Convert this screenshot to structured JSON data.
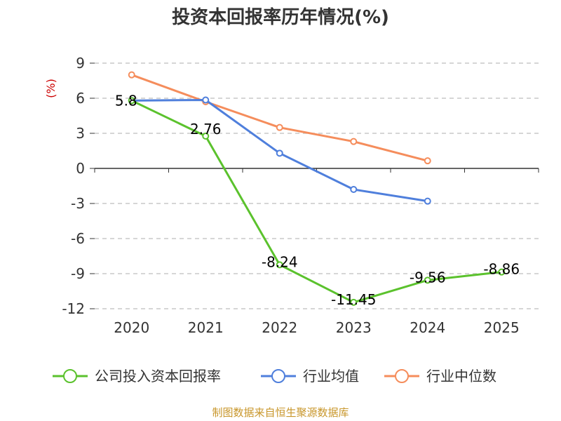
{
  "chart_data": {
    "type": "line",
    "title": "投资本回报率历年情况(%)",
    "ylabel": "(%)",
    "categories": [
      "2020",
      "2021",
      "2022",
      "2023",
      "2024",
      "2025"
    ],
    "ylim": [
      -12,
      9
    ],
    "yticks": [
      9,
      6,
      3,
      0,
      -3,
      -6,
      -9,
      -12
    ],
    "ytick_labels": [
      "9",
      "6",
      "3",
      "0",
      "-3",
      "-6",
      "-9",
      "-12"
    ],
    "grid": true,
    "legend_position": "bottom",
    "series": [
      {
        "name": "公司投入资本回报率",
        "color": "#5bc22d",
        "values": [
          5.8,
          2.76,
          -8.24,
          -11.45,
          -9.56,
          -8.86
        ],
        "labels": [
          "5.8",
          "2.76",
          "-8.24",
          "-11.45",
          "-9.56",
          "-8.86"
        ]
      },
      {
        "name": "行业均值",
        "color": "#4f7fdc",
        "values": [
          5.8,
          5.85,
          1.3,
          -1.8,
          -2.8,
          null
        ]
      },
      {
        "name": "行业中位数",
        "color": "#f58d5c",
        "values": [
          8.0,
          5.7,
          3.5,
          2.3,
          0.65,
          null
        ]
      }
    ]
  },
  "source_text": "制图数据来自恒生聚源数据库"
}
